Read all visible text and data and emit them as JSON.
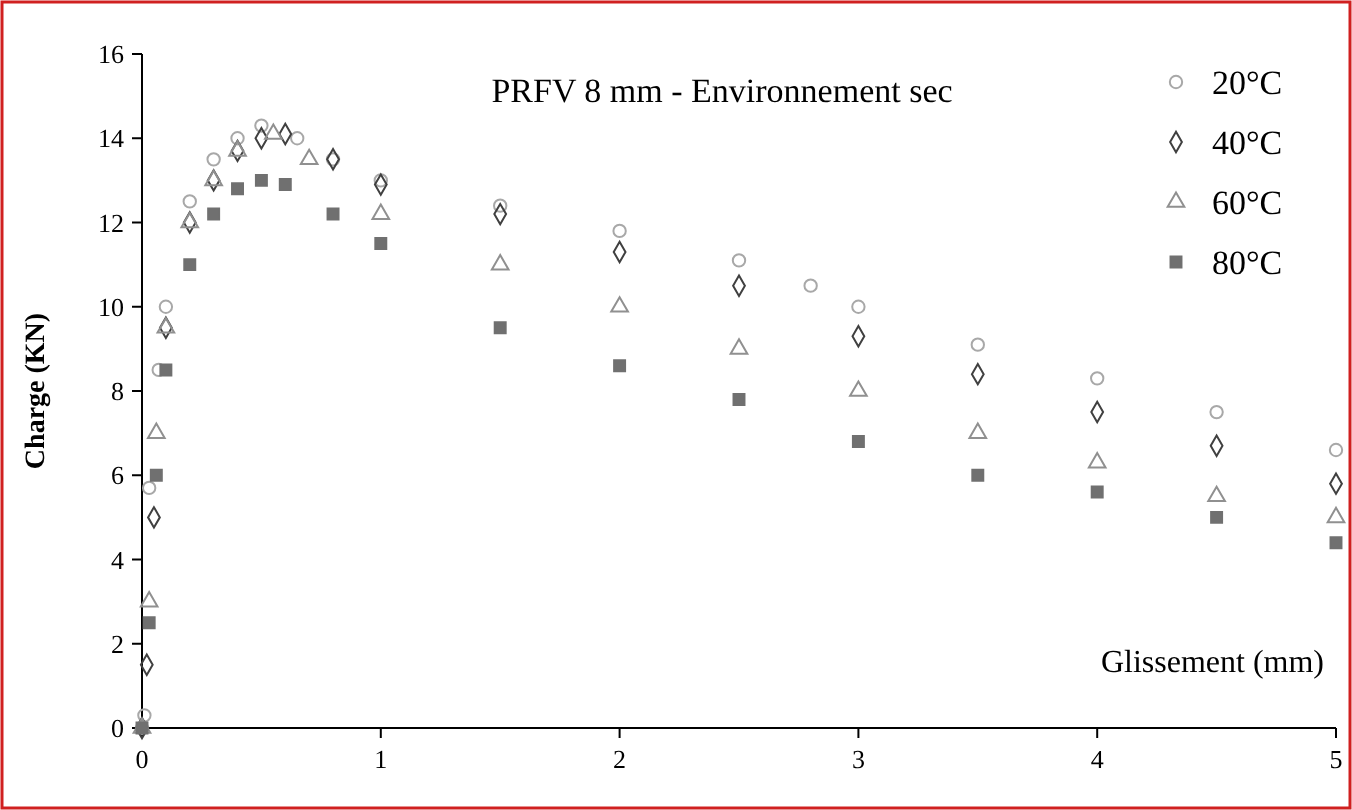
{
  "chart_data": {
    "type": "scatter",
    "title": "PRFV  8 mm - Environnement sec",
    "xlabel": "Glissement (mm)",
    "ylabel": "Charge (KN)",
    "xlim": [
      0,
      5
    ],
    "xticks": [
      0,
      1,
      2,
      3,
      4,
      5
    ],
    "ylim": [
      0,
      16
    ],
    "yticks": [
      0,
      2,
      4,
      6,
      8,
      10,
      12,
      14,
      16
    ],
    "grid": false,
    "legend": "top right",
    "series": [
      {
        "name": "20°C",
        "color": "#a8a8a8",
        "marker": "circle",
        "x": [
          0,
          0.01,
          0.03,
          0.07,
          0.1,
          0.2,
          0.3,
          0.4,
          0.5,
          0.65,
          0.8,
          1,
          1.5,
          2,
          2.5,
          2.8,
          3,
          3.5,
          4,
          4.5,
          5
        ],
        "values": [
          0,
          0.3,
          5.7,
          8.5,
          10,
          12.5,
          13.5,
          14,
          14.3,
          14,
          13.5,
          13,
          12.4,
          11.8,
          11.1,
          10.5,
          10,
          9.1,
          8.3,
          7.5,
          6.6
        ]
      },
      {
        "name": "40°C",
        "color": "#404040",
        "marker": "diamond",
        "x": [
          0,
          0.02,
          0.05,
          0.1,
          0.2,
          0.3,
          0.4,
          0.5,
          0.6,
          0.8,
          1,
          1.5,
          2,
          2.5,
          3,
          3.5,
          4,
          4.5,
          5
        ],
        "values": [
          0,
          1.5,
          5,
          9.5,
          12,
          13,
          13.7,
          14,
          14.1,
          13.5,
          12.9,
          12.2,
          11.3,
          10.5,
          9.3,
          8.4,
          7.5,
          6.7,
          5.8
        ]
      },
      {
        "name": "60°C",
        "color": "#909090",
        "marker": "triangle",
        "x": [
          0,
          0.03,
          0.06,
          0.1,
          0.2,
          0.3,
          0.4,
          0.55,
          0.7,
          1,
          1.5,
          2,
          2.5,
          3,
          3.5,
          4,
          4.5,
          5
        ],
        "values": [
          0,
          3,
          7,
          9.5,
          12,
          13,
          13.7,
          14.1,
          13.5,
          12.2,
          11,
          10,
          9,
          8,
          7,
          6.3,
          5.5,
          5
        ]
      },
      {
        "name": "80°C",
        "color": "#707070",
        "marker": "square",
        "x": [
          0,
          0.03,
          0.06,
          0.1,
          0.2,
          0.3,
          0.4,
          0.5,
          0.6,
          0.8,
          1,
          1.5,
          2,
          2.5,
          3,
          3.5,
          4,
          4.5,
          5
        ],
        "values": [
          0,
          2.5,
          6,
          8.5,
          11,
          12.2,
          12.8,
          13,
          12.9,
          12.2,
          11.5,
          9.5,
          8.6,
          7.8,
          6.8,
          6,
          5.6,
          5,
          4.4
        ]
      }
    ]
  }
}
